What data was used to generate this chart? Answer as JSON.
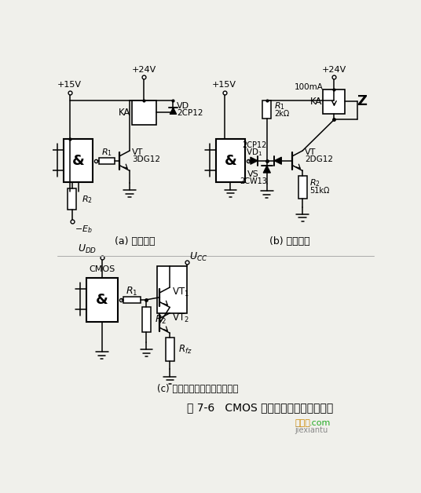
{
  "bg_color": "#f0f0eb",
  "title": "图 7-6   CMOS 与开关放大器的接口电路",
  "label_a": "(a) 一般电路",
  "label_b": "(b) 改进电路",
  "label_c": "(c) 采用达林顿电路的接口电路",
  "figsize": [
    5.36,
    6.28
  ],
  "dpi": 100
}
